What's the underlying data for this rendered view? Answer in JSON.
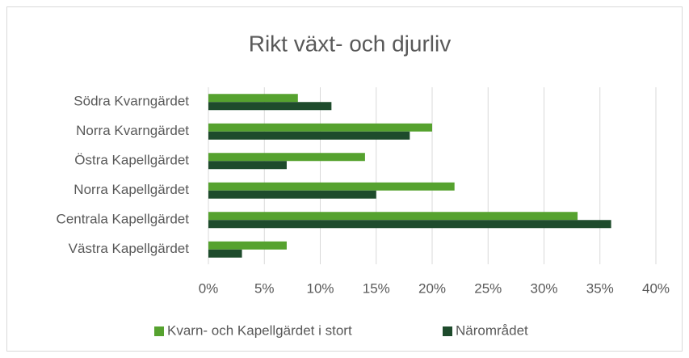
{
  "chart_data": {
    "type": "bar",
    "orientation": "horizontal",
    "title": "Rikt växt- och djurliv",
    "categories": [
      "Södra Kvarngärdet",
      "Norra Kvarngärdet",
      "Östra Kapellgärdet",
      "Norra Kapellgärdet",
      "Centrala Kapellgärdet",
      "Västra Kapellgärdet"
    ],
    "series": [
      {
        "name": "Kvarn- och Kapellgärdet i stort",
        "color": "#56a22f",
        "values": [
          8,
          20,
          14,
          22,
          33,
          7
        ]
      },
      {
        "name": "Närområdet",
        "color": "#1e4b2c",
        "values": [
          11,
          18,
          7,
          15,
          36,
          3
        ]
      }
    ],
    "xlim": [
      0,
      40
    ],
    "xticks": [
      {
        "value": 0,
        "label": "0%"
      },
      {
        "value": 5,
        "label": "5%"
      },
      {
        "value": 10,
        "label": "10%"
      },
      {
        "value": 15,
        "label": "15%"
      },
      {
        "value": 20,
        "label": "20%"
      },
      {
        "value": 25,
        "label": "25%"
      },
      {
        "value": 30,
        "label": "30%"
      },
      {
        "value": 35,
        "label": "35%"
      },
      {
        "value": 40,
        "label": "40%"
      }
    ],
    "grid": true,
    "legend": "bottom"
  }
}
